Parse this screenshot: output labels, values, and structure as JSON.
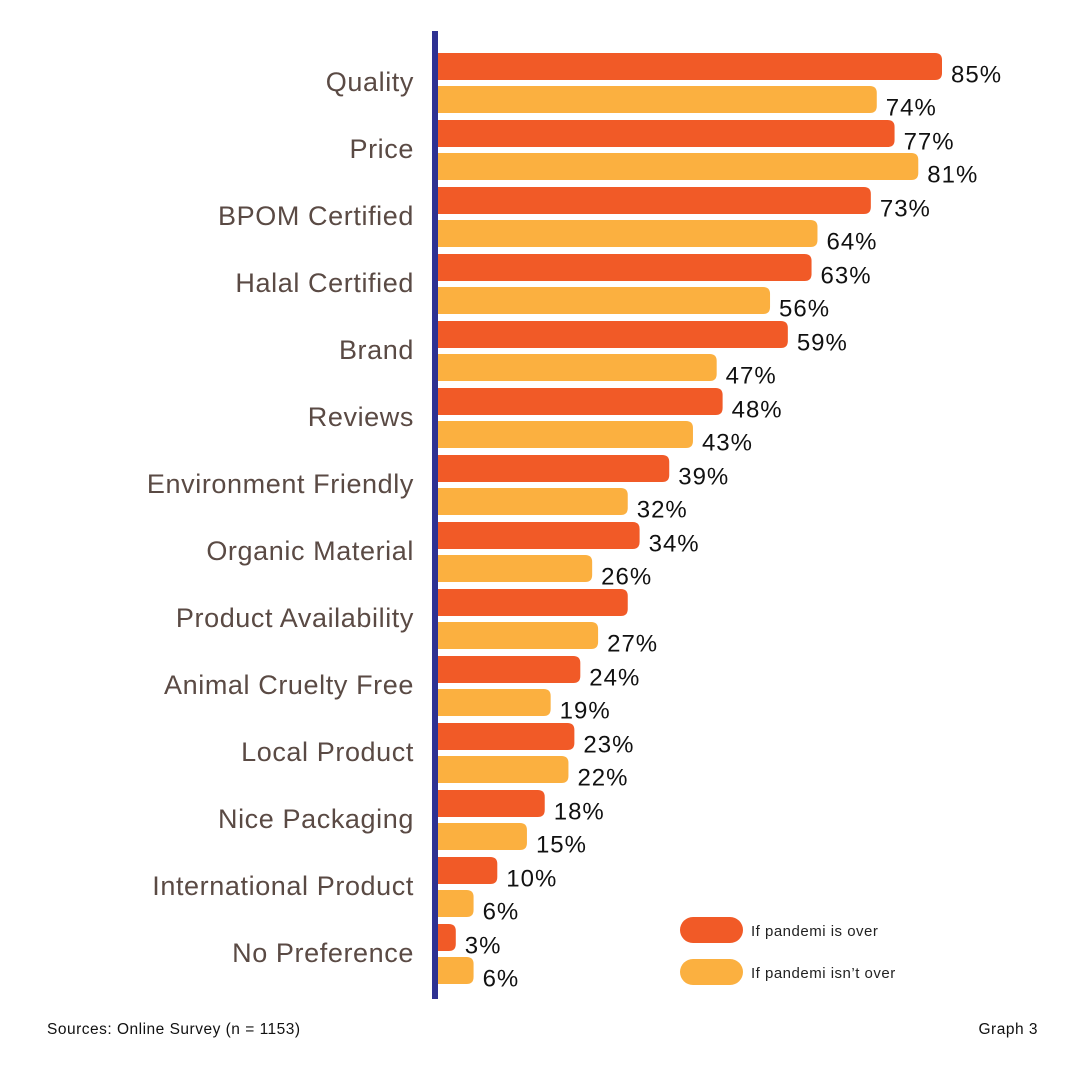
{
  "chart_data": {
    "type": "bar",
    "orientation": "horizontal",
    "categories": [
      "Quality",
      "Price",
      "BPOM Certified",
      "Halal Certified",
      "Brand",
      "Reviews",
      "Environment Friendly",
      "Organic Material",
      "Product Availability",
      "Animal Cruelty Free",
      "Local Product",
      "Nice Packaging",
      "International Product",
      "No Preference"
    ],
    "series": [
      {
        "name": "If pandemi is over",
        "color": "#f15a27",
        "values": [
          85,
          77,
          73,
          63,
          59,
          48,
          39,
          34,
          32,
          24,
          23,
          18,
          10,
          3
        ],
        "labels": [
          "85%",
          "77%",
          "73%",
          "63%",
          "59%",
          "48%",
          "39%",
          "34%",
          "",
          "24%",
          "23%",
          "18%",
          "10%",
          "3%"
        ]
      },
      {
        "name": "If pandemi isn’t over",
        "color": "#fbb040",
        "values": [
          74,
          81,
          64,
          56,
          47,
          43,
          32,
          26,
          27,
          19,
          22,
          15,
          6,
          6
        ],
        "labels": [
          "74%",
          "81%",
          "64%",
          "56%",
          "47%",
          "43%",
          "32%",
          "26%",
          "27%",
          "19%",
          "22%",
          "15%",
          "6%",
          "6%"
        ]
      }
    ],
    "xlim": [
      0,
      85
    ],
    "grid": false,
    "legend_position": "bottom-right",
    "axis_color": "#2e3192"
  },
  "footer": {
    "source": "Sources: Online Survey (n = 1153)",
    "graph": "Graph 3"
  }
}
